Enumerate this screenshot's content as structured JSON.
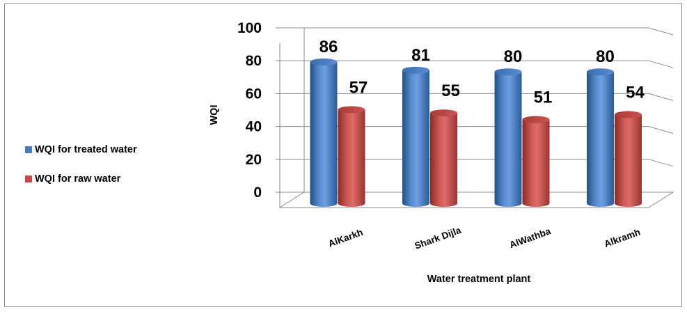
{
  "chart_data": {
    "type": "bar",
    "categories": [
      "AlKarkh",
      "Shark Dijla",
      "AlWathba",
      "Alkramh"
    ],
    "series": [
      {
        "name": "WQI for treated water",
        "values": [
          86,
          81,
          80,
          80
        ],
        "color": "#4a7ebb"
      },
      {
        "name": "WQI for raw water",
        "values": [
          57,
          55,
          51,
          54
        ],
        "color": "#be4b48"
      }
    ],
    "xlabel": "Water treatment plant",
    "ylabel": "WQI",
    "ylim": [
      0,
      100
    ],
    "yticks": [
      "0",
      "20",
      "40",
      "60",
      "80",
      "100"
    ],
    "grid": true,
    "legend_position": "left",
    "style": "3d-cylinder"
  }
}
